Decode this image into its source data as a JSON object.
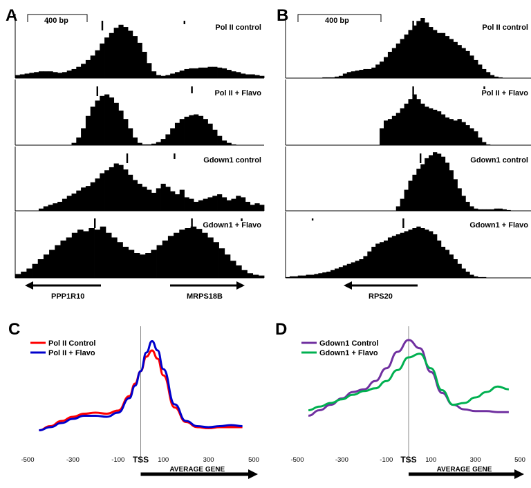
{
  "panels": {
    "A": {
      "letter": "A",
      "scale_label": "400 bp",
      "tracks": [
        {
          "label": "Pol II control",
          "values": [
            4,
            5,
            6,
            7,
            8,
            9,
            9,
            9,
            8,
            7,
            8,
            10,
            12,
            15,
            19,
            24,
            30,
            37,
            46,
            54,
            60,
            67,
            71,
            68,
            63,
            56,
            47,
            35,
            20,
            9,
            4,
            3,
            4,
            6,
            8,
            10,
            12,
            13,
            13,
            14,
            14,
            15,
            15,
            14,
            13,
            11,
            9,
            8,
            6,
            5,
            5,
            4,
            3
          ],
          "peak_ticks": [
            {
              "x": 0.35,
              "h": 14
            },
            {
              "x": 0.68,
              "h": 5
            },
            {
              "x": 0.13,
              "h": 4
            }
          ]
        },
        {
          "label": "Pol II + Flavo",
          "values": [
            0,
            0,
            0,
            0,
            0,
            0,
            0,
            0,
            0,
            0,
            0,
            0,
            3,
            10,
            22,
            38,
            50,
            58,
            64,
            66,
            62,
            55,
            45,
            34,
            22,
            10,
            3,
            1,
            1,
            2,
            4,
            8,
            14,
            22,
            29,
            34,
            37,
            39,
            40,
            38,
            34,
            28,
            20,
            12,
            6,
            3,
            1,
            0,
            0,
            0,
            0,
            0,
            0
          ],
          "peak_ticks": [
            {
              "x": 0.33,
              "h": 14
            },
            {
              "x": 0.71,
              "h": 10
            }
          ]
        },
        {
          "label": "Gdown1 control",
          "values": [
            0,
            0,
            0,
            0,
            0,
            3,
            6,
            8,
            10,
            12,
            16,
            20,
            23,
            27,
            31,
            33,
            38,
            43,
            50,
            54,
            58,
            63,
            61,
            55,
            48,
            41,
            36,
            32,
            28,
            24,
            30,
            36,
            32,
            26,
            22,
            28,
            18,
            16,
            12,
            14,
            16,
            18,
            20,
            22,
            18,
            14,
            16,
            20,
            18,
            12,
            8,
            10,
            8
          ],
          "peak_ticks": [
            {
              "x": 0.45,
              "h": 14
            },
            {
              "x": 0.64,
              "h": 8
            }
          ]
        },
        {
          "label": "Gdown1 + Flavo",
          "values": [
            5,
            8,
            12,
            18,
            24,
            30,
            36,
            42,
            48,
            52,
            58,
            62,
            60,
            64,
            62,
            66,
            58,
            52,
            46,
            40,
            36,
            32,
            30,
            32,
            36,
            42,
            48,
            54,
            58,
            62,
            64,
            66,
            63,
            58,
            52,
            46,
            38,
            30,
            22,
            16,
            10,
            6,
            4,
            3
          ],
          "peak_ticks": [
            {
              "x": 0.32,
              "h": 14
            },
            {
              "x": 0.71,
              "h": 14
            },
            {
              "x": 0.91,
              "h": 4
            }
          ]
        }
      ],
      "genes": [
        {
          "name": "PPP1R10",
          "direction": "left"
        },
        {
          "name": "MRPS18B",
          "direction": "right"
        }
      ]
    },
    "B": {
      "letter": "B",
      "scale_label": "400 bp",
      "tracks": [
        {
          "label": "Pol II control",
          "values": [
            0,
            0,
            0,
            0,
            0,
            0,
            0,
            0,
            0,
            1,
            1,
            1,
            2,
            3,
            6,
            8,
            9,
            10,
            11,
            12,
            12,
            14,
            18,
            22,
            28,
            35,
            40,
            46,
            52,
            58,
            64,
            70,
            76,
            80,
            74,
            68,
            64,
            60,
            60,
            56,
            52,
            48,
            44,
            40,
            36,
            30,
            24,
            18,
            12,
            8,
            4,
            2,
            1,
            0,
            0,
            0,
            0,
            0,
            0,
            0
          ],
          "peak_ticks": [
            {
              "x": 0.52,
              "h": 14
            }
          ]
        },
        {
          "label": "Pol II + Flavo",
          "values": [
            0,
            0,
            0,
            0,
            0,
            0,
            0,
            0,
            0,
            0,
            0,
            0,
            0,
            0,
            0,
            0,
            0,
            0,
            0,
            0,
            0,
            0,
            0,
            22,
            32,
            34,
            38,
            42,
            48,
            54,
            60,
            66,
            60,
            54,
            50,
            48,
            46,
            44,
            40,
            36,
            34,
            32,
            34,
            30,
            26,
            22,
            18,
            10,
            4,
            1,
            0,
            0,
            0,
            0,
            0,
            0,
            0,
            0,
            0,
            0
          ],
          "peak_ticks": [
            {
              "x": 0.52,
              "h": 14
            },
            {
              "x": 0.81,
              "h": 4
            }
          ]
        },
        {
          "label": "Gdown1 control",
          "values": [
            0,
            0,
            0,
            0,
            0,
            0,
            0,
            0,
            0,
            0,
            0,
            0,
            0,
            0,
            0,
            0,
            0,
            0,
            0,
            0,
            0,
            0,
            0,
            0,
            0,
            0,
            0,
            6,
            16,
            28,
            40,
            48,
            56,
            62,
            70,
            74,
            78,
            76,
            72,
            64,
            54,
            42,
            30,
            20,
            12,
            6,
            3,
            2,
            2,
            2,
            2,
            3,
            3,
            2,
            1,
            0,
            0,
            0,
            0,
            0
          ],
          "peak_ticks": [
            {
              "x": 0.55,
              "h": 14
            }
          ]
        },
        {
          "label": "Gdown1 + Flavo",
          "values": [
            1,
            2,
            2,
            3,
            3,
            4,
            4,
            5,
            6,
            7,
            8,
            10,
            12,
            14,
            16,
            18,
            20,
            22,
            24,
            28,
            34,
            40,
            44,
            46,
            48,
            52,
            54,
            56,
            58,
            60,
            62,
            64,
            66,
            64,
            62,
            60,
            56,
            48,
            40,
            36,
            30,
            24,
            18,
            12,
            8,
            4,
            2,
            1,
            1,
            0,
            0,
            0,
            0,
            0,
            0,
            0,
            0,
            0,
            0,
            0
          ],
          "peak_ticks": [
            {
              "x": 0.48,
              "h": 14
            },
            {
              "x": 0.11,
              "h": 3
            }
          ]
        }
      ],
      "genes": [
        {
          "name": "RPS20",
          "direction": "left"
        }
      ]
    },
    "C": {
      "letter": "C",
      "tss_label": "TSS",
      "avg_gene_label": "AVERAGE GENE",
      "x_ticks": [
        -500,
        -300,
        -100,
        100,
        300,
        500
      ]
    },
    "D": {
      "letter": "D",
      "tss_label": "TSS",
      "avg_gene_label": "AVERAGE GENE",
      "x_ticks": [
        -500,
        -300,
        -100,
        100,
        300,
        500
      ]
    }
  },
  "chart_data": [
    {
      "type": "line",
      "panel": "C",
      "xlim": [
        -500,
        500
      ],
      "ylim": [
        0,
        1
      ],
      "x": [
        -450,
        -400,
        -350,
        -300,
        -250,
        -200,
        -150,
        -100,
        -50,
        -25,
        0,
        25,
        50,
        75,
        100,
        150,
        200,
        250,
        300,
        350,
        400,
        450
      ],
      "series": [
        {
          "name": "Pol II Control",
          "color": "#ff0000",
          "values": [
            0.05,
            0.09,
            0.14,
            0.18,
            0.21,
            0.22,
            0.21,
            0.24,
            0.38,
            0.5,
            0.62,
            0.76,
            0.82,
            0.74,
            0.58,
            0.27,
            0.13,
            0.08,
            0.07,
            0.08,
            0.08,
            0.08
          ]
        },
        {
          "name": "Pol II + Flavo",
          "color": "#0000cc",
          "values": [
            0.05,
            0.08,
            0.12,
            0.16,
            0.19,
            0.19,
            0.18,
            0.22,
            0.36,
            0.48,
            0.62,
            0.8,
            0.91,
            0.82,
            0.64,
            0.3,
            0.14,
            0.09,
            0.08,
            0.09,
            0.1,
            0.09
          ]
        }
      ]
    },
    {
      "type": "line",
      "panel": "D",
      "xlim": [
        -500,
        500
      ],
      "ylim": [
        0,
        1
      ],
      "x": [
        -450,
        -400,
        -350,
        -300,
        -250,
        -200,
        -150,
        -100,
        -50,
        0,
        50,
        100,
        150,
        200,
        250,
        300,
        350,
        400,
        450
      ],
      "series": [
        {
          "name": "Gdown1 Control",
          "color": "#7030a0",
          "values": [
            0.08,
            0.14,
            0.2,
            0.27,
            0.34,
            0.37,
            0.46,
            0.6,
            0.78,
            0.91,
            0.82,
            0.56,
            0.33,
            0.2,
            0.15,
            0.13,
            0.13,
            0.12,
            0.12
          ]
        },
        {
          "name": "Gdown1 + Flavo",
          "color": "#00b050",
          "values": [
            0.14,
            0.18,
            0.22,
            0.26,
            0.31,
            0.35,
            0.38,
            0.46,
            0.58,
            0.72,
            0.76,
            0.6,
            0.36,
            0.2,
            0.22,
            0.28,
            0.34,
            0.4,
            0.37
          ]
        }
      ]
    }
  ]
}
